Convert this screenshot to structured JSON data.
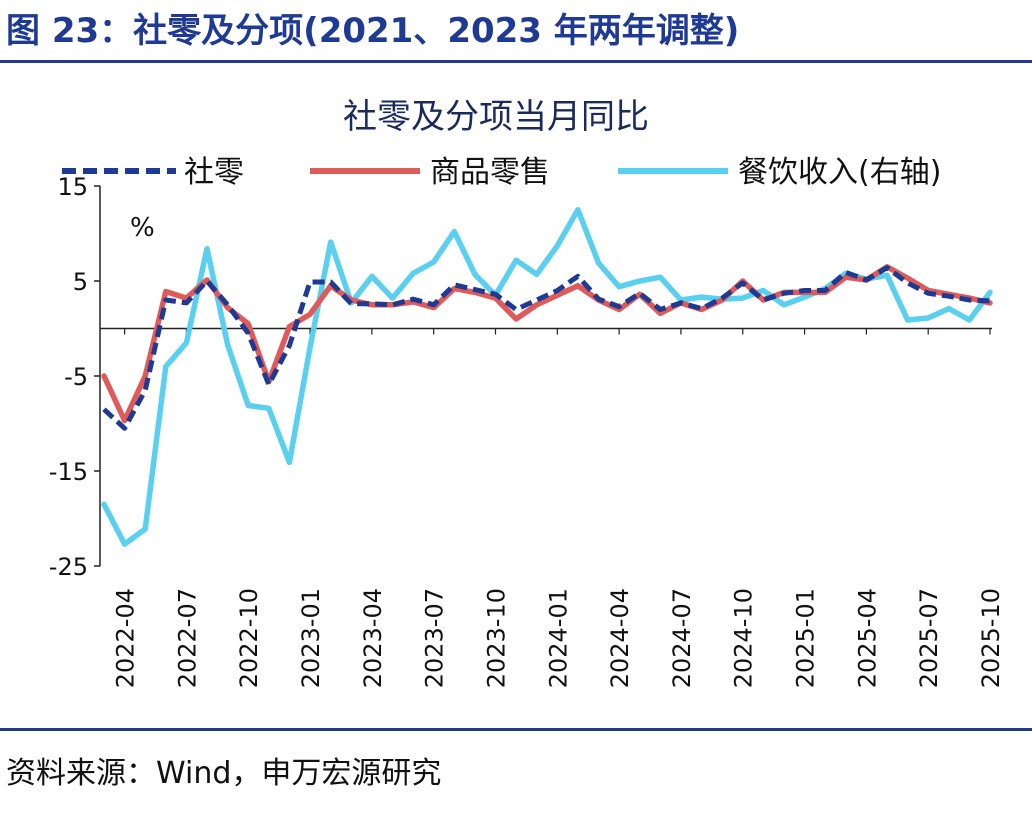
{
  "figure": {
    "title": "图 23：社零及分项(2021、2023 年两年调整)",
    "source": "资料来源：Wind，申万宏源研究"
  },
  "chart_data": {
    "type": "line",
    "title": "社零及分项当月同比",
    "unit_label": "%",
    "ylim": [
      -25,
      15
    ],
    "yticks": [
      "15",
      "5",
      "-5",
      "-15",
      "-25"
    ],
    "ytick_values": [
      15,
      5,
      -5,
      -15,
      -25
    ],
    "x_tick_labels": [
      "2022-04",
      "2022-07",
      "2022-10",
      "2023-01",
      "2023-04",
      "2023-07",
      "2023-10",
      "2024-01",
      "2024-04",
      "2024-07",
      "2024-10",
      "2025-01",
      "2025-04",
      "2025-07",
      "2025-10"
    ],
    "x": [
      "2022-03",
      "2022-04",
      "2022-05",
      "2022-06",
      "2022-07",
      "2022-08",
      "2022-09",
      "2022-10",
      "2022-11",
      "2022-12",
      "2023-01",
      "2023-02",
      "2023-03",
      "2023-04",
      "2023-05",
      "2023-06",
      "2023-07",
      "2023-08",
      "2023-09",
      "2023-10",
      "2023-11",
      "2023-12",
      "2024-01",
      "2024-02",
      "2024-03",
      "2024-04",
      "2024-05",
      "2024-06",
      "2024-07",
      "2024-08",
      "2024-09",
      "2024-10",
      "2024-11",
      "2024-12",
      "2025-01",
      "2025-02",
      "2025-03",
      "2025-04",
      "2025-05",
      "2025-06",
      "2025-07",
      "2025-08",
      "2025-09",
      "2025-10"
    ],
    "legend_position": "top",
    "series": [
      {
        "name": "社零",
        "color": "#1f3a93",
        "style": "dashed",
        "values": [
          -8.5,
          -10.5,
          -6.5,
          3.0,
          2.7,
          5.0,
          2.5,
          -0.5,
          -5.9,
          -1.8,
          4.9,
          4.9,
          2.6,
          2.6,
          2.5,
          3.1,
          2.5,
          4.6,
          4.1,
          3.6,
          2.0,
          3.0,
          4.0,
          5.5,
          3.1,
          2.3,
          3.7,
          2.0,
          2.7,
          2.1,
          3.2,
          4.8,
          3.0,
          3.7,
          4.0,
          4.0,
          5.9,
          5.1,
          6.4,
          4.8,
          3.7,
          3.4,
          3.0,
          2.9
        ]
      },
      {
        "name": "商品零售",
        "color": "#e05a5a",
        "style": "solid",
        "values": [
          -5.0,
          -9.7,
          -5.0,
          3.9,
          3.2,
          5.1,
          2.2,
          0.5,
          -5.6,
          0.2,
          1.5,
          4.5,
          3.0,
          2.5,
          2.5,
          2.8,
          2.2,
          4.2,
          3.8,
          3.2,
          1.0,
          2.5,
          3.5,
          4.5,
          3.0,
          2.0,
          3.6,
          1.6,
          2.7,
          2.0,
          3.0,
          5.0,
          3.0,
          3.8,
          3.8,
          3.8,
          5.4,
          5.1,
          6.5,
          5.3,
          4.0,
          3.6,
          3.2,
          2.7
        ]
      },
      {
        "name": "餐饮收入(右轴)",
        "color": "#5ad0f0",
        "style": "solid",
        "values": [
          -18.5,
          -22.7,
          -21.1,
          -4.0,
          -1.5,
          8.4,
          -1.7,
          -8.1,
          -8.4,
          -14.1,
          -2.0,
          9.1,
          2.7,
          5.5,
          3.2,
          5.8,
          7.0,
          10.2,
          5.7,
          3.5,
          7.2,
          5.7,
          8.7,
          12.5,
          6.9,
          4.4,
          5.0,
          5.4,
          3.0,
          3.3,
          3.1,
          3.2,
          4.0,
          2.5,
          3.3,
          4.2,
          5.8,
          5.2,
          5.6,
          0.9,
          1.1,
          2.1,
          0.9,
          3.8
        ]
      }
    ]
  }
}
